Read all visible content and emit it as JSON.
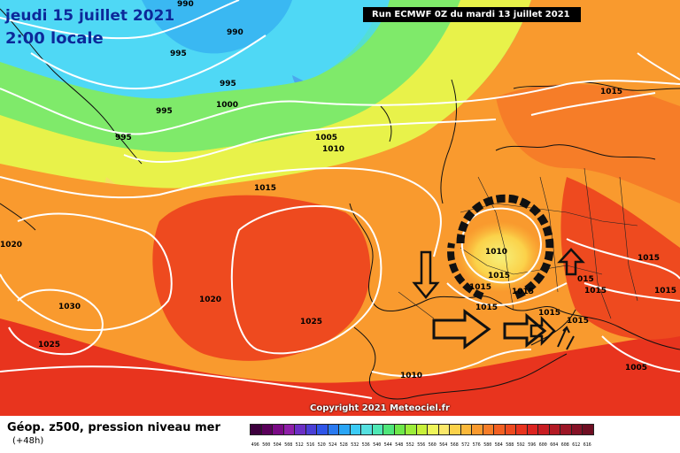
{
  "header": {
    "date": "jeudi 15 juillet 2021",
    "time": "2:00 locale",
    "run": "Run ECMWF 0Z du mardi 13 juillet 2021"
  },
  "copyright": "Copyright 2021 Meteociel.fr",
  "footer": {
    "product": "Géop. z500, pression niveau mer",
    "lead": "(+48h)"
  },
  "legend": {
    "values": [
      "496",
      "500",
      "504",
      "508",
      "512",
      "516",
      "520",
      "524",
      "528",
      "532",
      "536",
      "540",
      "544",
      "548",
      "552",
      "556",
      "560",
      "564",
      "568",
      "572",
      "576",
      "580",
      "584",
      "588",
      "592",
      "596",
      "600",
      "604",
      "608",
      "612",
      "616"
    ],
    "colors": [
      "#3d003d",
      "#5a005a",
      "#7a0a85",
      "#8f1fa8",
      "#6b2fc4",
      "#4a3fd6",
      "#2f55e8",
      "#2a7af0",
      "#2aa5f5",
      "#3ccbf5",
      "#55e0e0",
      "#4fe8b5",
      "#4fe67a",
      "#6ee84a",
      "#9ced3a",
      "#c8f03a",
      "#eef55a",
      "#fbe86a",
      "#fbd24a",
      "#fab83a",
      "#f99a2e",
      "#f67d28",
      "#f26022",
      "#ee4a1f",
      "#e8341e",
      "#dc2420",
      "#c81d22",
      "#b31a24",
      "#9c1626",
      "#851226",
      "#6e0e22"
    ]
  },
  "isobar_labels": [
    {
      "text": "990"
    },
    {
      "text": "990"
    },
    {
      "text": "995"
    },
    {
      "text": "995"
    },
    {
      "text": "995"
    },
    {
      "text": "995"
    },
    {
      "text": "1000"
    },
    {
      "text": "1005"
    },
    {
      "text": "1010"
    },
    {
      "text": "1015"
    },
    {
      "text": "1015"
    },
    {
      "text": "1020"
    },
    {
      "text": "1020"
    },
    {
      "text": "1030"
    },
    {
      "text": "1025"
    },
    {
      "text": "1025"
    },
    {
      "text": "1010"
    },
    {
      "text": "1015"
    },
    {
      "text": "1015"
    },
    {
      "text": "1015"
    },
    {
      "text": "1015"
    },
    {
      "text": "1015"
    },
    {
      "text": "015"
    },
    {
      "text": "1015"
    },
    {
      "text": "1015"
    },
    {
      "text": "1015"
    },
    {
      "text": "1015"
    },
    {
      "text": "1010"
    },
    {
      "text": "1005"
    },
    {
      "text": "1015"
    }
  ]
}
